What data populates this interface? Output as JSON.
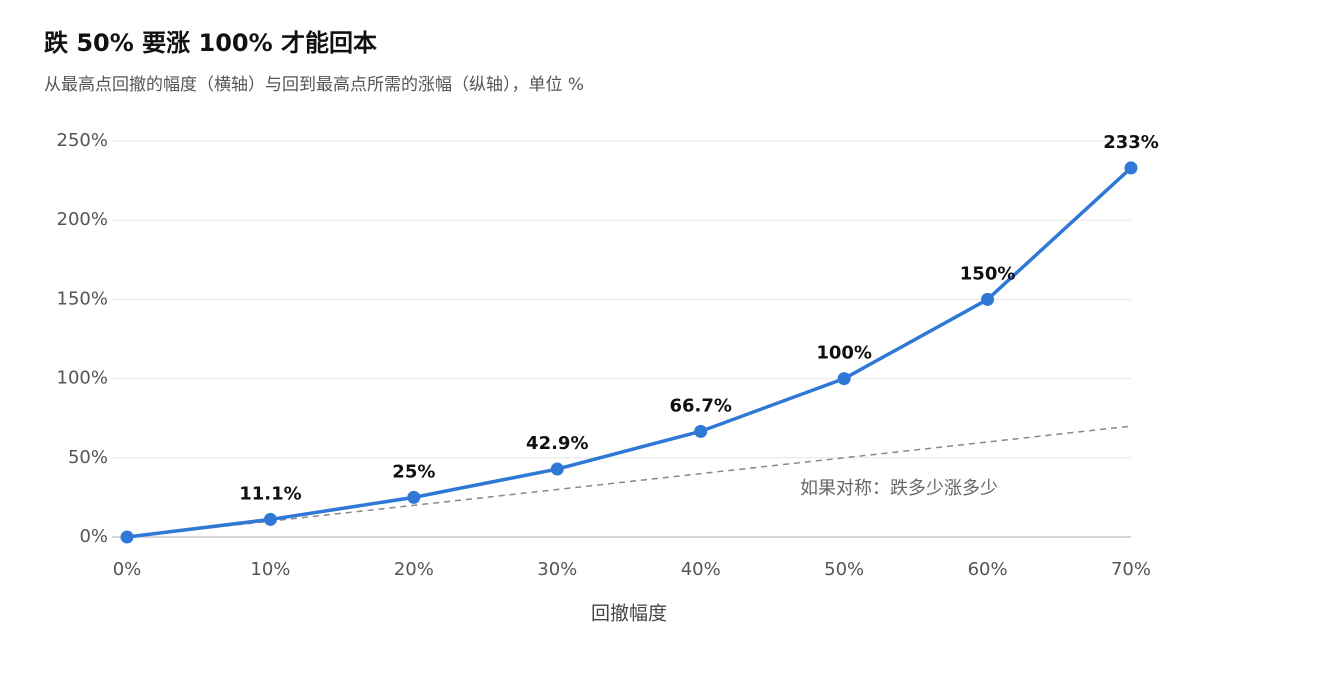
{
  "chart_data": {
    "type": "line",
    "title": "跌 50% 要涨 100% 才能回本",
    "subtitle": "从最高点回撤的幅度（横轴）与回到最高点所需的涨幅（纵轴），单位 %",
    "x_label": "回撤幅度",
    "x": [
      0,
      10,
      20,
      30,
      40,
      50,
      60,
      70
    ],
    "series": [
      {
        "color": "#2f78d6",
        "values": [
          0,
          11.1,
          25,
          42.9,
          66.7,
          100,
          150,
          233
        ],
        "value_labels": [
          null,
          "11.1%",
          "25%",
          "42.9%",
          "66.7%",
          "100%",
          "150%",
          "233%"
        ]
      },
      {
        "name": "如果对称：跌多少涨多少",
        "color": "#888888",
        "dashed": true,
        "values": [
          0,
          10,
          20,
          30,
          40,
          50,
          60,
          70
        ]
      }
    ],
    "xlim": [
      0,
      70
    ],
    "xticks": [
      {
        "value": 0,
        "label": "0%"
      },
      {
        "value": 10,
        "label": "10%"
      },
      {
        "value": 20,
        "label": "20%"
      },
      {
        "value": 30,
        "label": "30%"
      },
      {
        "value": 40,
        "label": "40%"
      },
      {
        "value": 50,
        "label": "50%"
      },
      {
        "value": 60,
        "label": "60%"
      },
      {
        "value": 70,
        "label": "70%"
      }
    ],
    "ylim": [
      0,
      250
    ],
    "yticks": [
      {
        "value": 0,
        "label": "0%"
      },
      {
        "value": 50,
        "label": "50%"
      },
      {
        "value": 100,
        "label": "100%"
      },
      {
        "value": 150,
        "label": "150%"
      },
      {
        "value": 200,
        "label": "200%"
      },
      {
        "value": 250,
        "label": "250%"
      }
    ],
    "grid": true
  }
}
